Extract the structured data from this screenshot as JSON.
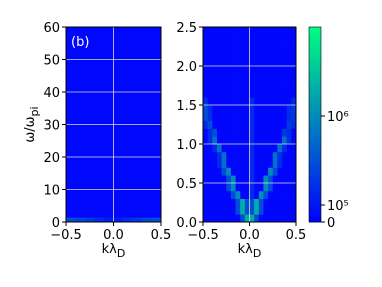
{
  "chart_data": [
    {
      "type": "heatmap",
      "annotation": "(b)",
      "xlabel": "kλ",
      "xlabel_subscript": "D",
      "ylabel": "ω/ω",
      "ylabel_subscript": "pi",
      "xlim": [
        -0.5,
        0.5
      ],
      "ylim": [
        0,
        60
      ],
      "xticks": [
        {
          "value": -0.5,
          "label": "−0.5"
        },
        {
          "value": 0,
          "label": "0.0"
        },
        0.5
      ],
      "yticks": [
        0,
        10,
        20,
        30,
        40,
        50,
        60
      ],
      "grid": true,
      "colormap": "winter",
      "xbins": [
        -0.5,
        -0.4,
        -0.3,
        -0.2,
        -0.1,
        0,
        0.1,
        0.2,
        0.3,
        0.4,
        0.5
      ],
      "ybins": [
        0,
        1.5,
        60
      ],
      "z": [
        [
          300000.0,
          250000.0,
          200000.0,
          150000.0,
          120000.0,
          120000.0,
          150000.0,
          200000.0,
          250000.0,
          300000.0
        ],
        [
          30000.0,
          30000.0,
          30000.0,
          30000.0,
          30000.0,
          30000.0,
          30000.0,
          30000.0,
          30000.0,
          30000.0
        ]
      ]
    },
    {
      "type": "heatmap",
      "xlabel": "kλ",
      "xlabel_subscript": "D",
      "xlim": [
        -0.5,
        0.5
      ],
      "ylim": [
        0,
        2.5
      ],
      "xticks": [
        {
          "value": -0.5,
          "label": "−0.5"
        },
        {
          "value": 0,
          "label": "0.0"
        },
        0.5
      ],
      "yticks": [
        {
          "value": 0,
          "label": "0.0"
        },
        0.5,
        {
          "value": 1,
          "label": "1.0"
        },
        1.5,
        {
          "value": 2,
          "label": "2.0"
        },
        2.5
      ],
      "grid": true,
      "colormap": "winter",
      "colorbar": {
        "zlim": [
          0,
          10000000.0
        ],
        "linthresh": 100000.0,
        "ticks": [
          {
            "value": 0,
            "label": "0"
          },
          {
            "value": 100000.0,
            "label": "10⁵"
          },
          {
            "value": 1000000.0,
            "label": "10⁶"
          }
        ]
      },
      "xbins": [
        -0.5,
        -0.45,
        -0.4,
        -0.35,
        -0.3,
        -0.25,
        -0.2,
        -0.15,
        -0.1,
        -0.05,
        0,
        0.05,
        0.1,
        0.15,
        0.2,
        0.25,
        0.3,
        0.35,
        0.4,
        0.45,
        0.5
      ],
      "ybins": [
        0,
        0.1,
        0.2,
        0.3,
        0.4,
        0.5,
        0.6,
        0.7,
        0.8,
        0.9,
        1,
        1.1,
        1.2,
        1.3,
        1.4,
        1.5,
        1.6,
        1.7,
        1.8,
        1.9,
        2,
        2.1,
        2.2,
        2.3,
        2.4,
        2.5
      ],
      "z": [
        [
          30000.0,
          30000.0,
          30000.0,
          30000.0,
          30000.0,
          30000.0,
          30000.0,
          30000.0,
          300000.0,
          2000000.0,
          2000000.0,
          300000.0,
          30000.0,
          30000.0,
          30000.0,
          30000.0,
          30000.0,
          30000.0,
          30000.0,
          30000.0
        ],
        [
          30000.0,
          30000.0,
          30000.0,
          30000.0,
          30000.0,
          30000.0,
          30000.0,
          300000.0,
          2000000.0,
          300000.0,
          300000.0,
          2000000.0,
          300000.0,
          30000.0,
          30000.0,
          30000.0,
          30000.0,
          30000.0,
          30000.0,
          30000.0
        ],
        [
          30000.0,
          30000.0,
          30000.0,
          30000.0,
          30000.0,
          30000.0,
          30000.0,
          300000.0,
          2000000.0,
          300000.0,
          300000.0,
          2000000.0,
          300000.0,
          30000.0,
          30000.0,
          30000.0,
          30000.0,
          30000.0,
          30000.0,
          30000.0
        ],
        [
          30000.0,
          30000.0,
          30000.0,
          30000.0,
          30000.0,
          30000.0,
          300000.0,
          1000000.0,
          30000.0,
          30000.0,
          150000.0,
          30000.0,
          1000000.0,
          300000.0,
          30000.0,
          30000.0,
          30000.0,
          30000.0,
          30000.0,
          30000.0
        ],
        [
          30000.0,
          30000.0,
          30000.0,
          30000.0,
          30000.0,
          300000.0,
          1000000.0,
          30000.0,
          30000.0,
          30000.0,
          150000.0,
          30000.0,
          30000.0,
          1000000.0,
          300000.0,
          30000.0,
          30000.0,
          30000.0,
          30000.0,
          30000.0
        ],
        [
          30000.0,
          30000.0,
          30000.0,
          30000.0,
          30000.0,
          300000.0,
          1000000.0,
          30000.0,
          30000.0,
          30000.0,
          150000.0,
          30000.0,
          30000.0,
          1000000.0,
          300000.0,
          30000.0,
          30000.0,
          30000.0,
          30000.0,
          30000.0
        ],
        [
          30000.0,
          30000.0,
          30000.0,
          30000.0,
          300000.0,
          1000000.0,
          30000.0,
          30000.0,
          30000.0,
          30000.0,
          150000.0,
          30000.0,
          30000.0,
          30000.0,
          1000000.0,
          300000.0,
          30000.0,
          30000.0,
          30000.0,
          30000.0
        ],
        [
          30000.0,
          30000.0,
          30000.0,
          150000.0,
          600000.0,
          30000.0,
          30000.0,
          30000.0,
          30000.0,
          30000.0,
          150000.0,
          30000.0,
          30000.0,
          30000.0,
          30000.0,
          600000.0,
          150000.0,
          30000.0,
          30000.0,
          30000.0
        ],
        [
          30000.0,
          30000.0,
          30000.0,
          150000.0,
          600000.0,
          30000.0,
          30000.0,
          30000.0,
          30000.0,
          30000.0,
          150000.0,
          30000.0,
          30000.0,
          30000.0,
          30000.0,
          600000.0,
          150000.0,
          30000.0,
          30000.0,
          30000.0
        ],
        [
          30000.0,
          30000.0,
          150000.0,
          600000.0,
          30000.0,
          30000.0,
          30000.0,
          30000.0,
          30000.0,
          30000.0,
          150000.0,
          30000.0,
          30000.0,
          30000.0,
          30000.0,
          30000.0,
          600000.0,
          150000.0,
          30000.0,
          30000.0
        ],
        [
          30000.0,
          150000.0,
          600000.0,
          30000.0,
          30000.0,
          30000.0,
          30000.0,
          30000.0,
          30000.0,
          30000.0,
          150000.0,
          30000.0,
          30000.0,
          30000.0,
          30000.0,
          30000.0,
          30000.0,
          600000.0,
          150000.0,
          30000.0
        ],
        [
          30000.0,
          150000.0,
          300000.0,
          30000.0,
          30000.0,
          30000.0,
          30000.0,
          30000.0,
          30000.0,
          30000.0,
          150000.0,
          30000.0,
          30000.0,
          30000.0,
          30000.0,
          30000.0,
          30000.0,
          200000.0,
          150000.0,
          30000.0
        ],
        [
          150000.0,
          300000.0,
          30000.0,
          30000.0,
          30000.0,
          30000.0,
          30000.0,
          30000.0,
          30000.0,
          30000.0,
          150000.0,
          30000.0,
          30000.0,
          30000.0,
          30000.0,
          30000.0,
          30000.0,
          30000.0,
          200000.0,
          150000.0
        ],
        [
          300000.0,
          150000.0,
          30000.0,
          30000.0,
          30000.0,
          30000.0,
          30000.0,
          30000.0,
          30000.0,
          30000.0,
          150000.0,
          30000.0,
          30000.0,
          30000.0,
          30000.0,
          30000.0,
          30000.0,
          30000.0,
          150000.0,
          200000.0
        ],
        [
          300000.0,
          150000.0,
          30000.0,
          30000.0,
          30000.0,
          30000.0,
          30000.0,
          30000.0,
          30000.0,
          30000.0,
          150000.0,
          30000.0,
          30000.0,
          30000.0,
          30000.0,
          30000.0,
          30000.0,
          30000.0,
          150000.0,
          200000.0
        ],
        [
          150000.0,
          30000.0,
          30000.0,
          30000.0,
          30000.0,
          30000.0,
          30000.0,
          30000.0,
          30000.0,
          30000.0,
          150000.0,
          30000.0,
          30000.0,
          30000.0,
          30000.0,
          30000.0,
          30000.0,
          30000.0,
          30000.0,
          150000.0
        ],
        [
          30000.0,
          30000.0,
          30000.0,
          30000.0,
          30000.0,
          30000.0,
          30000.0,
          30000.0,
          30000.0,
          30000.0,
          30000.0,
          30000.0,
          30000.0,
          30000.0,
          30000.0,
          30000.0,
          30000.0,
          30000.0,
          30000.0,
          30000.0
        ],
        [
          30000.0,
          30000.0,
          30000.0,
          30000.0,
          30000.0,
          30000.0,
          30000.0,
          30000.0,
          30000.0,
          30000.0,
          30000.0,
          30000.0,
          30000.0,
          30000.0,
          30000.0,
          30000.0,
          30000.0,
          30000.0,
          30000.0,
          30000.0
        ],
        [
          30000.0,
          30000.0,
          30000.0,
          30000.0,
          30000.0,
          30000.0,
          30000.0,
          30000.0,
          30000.0,
          30000.0,
          30000.0,
          30000.0,
          30000.0,
          30000.0,
          30000.0,
          30000.0,
          30000.0,
          30000.0,
          30000.0,
          30000.0
        ],
        [
          30000.0,
          30000.0,
          30000.0,
          30000.0,
          30000.0,
          30000.0,
          30000.0,
          30000.0,
          30000.0,
          30000.0,
          30000.0,
          30000.0,
          30000.0,
          30000.0,
          30000.0,
          30000.0,
          30000.0,
          30000.0,
          30000.0,
          30000.0
        ],
        [
          30000.0,
          30000.0,
          30000.0,
          30000.0,
          30000.0,
          30000.0,
          30000.0,
          30000.0,
          30000.0,
          30000.0,
          30000.0,
          30000.0,
          30000.0,
          30000.0,
          30000.0,
          30000.0,
          30000.0,
          30000.0,
          30000.0,
          30000.0
        ],
        [
          30000.0,
          30000.0,
          30000.0,
          30000.0,
          30000.0,
          30000.0,
          30000.0,
          30000.0,
          30000.0,
          30000.0,
          30000.0,
          30000.0,
          30000.0,
          30000.0,
          30000.0,
          30000.0,
          30000.0,
          30000.0,
          30000.0,
          30000.0
        ],
        [
          30000.0,
          30000.0,
          30000.0,
          30000.0,
          30000.0,
          30000.0,
          30000.0,
          30000.0,
          30000.0,
          30000.0,
          30000.0,
          30000.0,
          30000.0,
          30000.0,
          30000.0,
          30000.0,
          30000.0,
          30000.0,
          30000.0,
          30000.0
        ],
        [
          30000.0,
          30000.0,
          30000.0,
          30000.0,
          30000.0,
          30000.0,
          30000.0,
          30000.0,
          30000.0,
          30000.0,
          30000.0,
          30000.0,
          30000.0,
          30000.0,
          30000.0,
          30000.0,
          30000.0,
          30000.0,
          30000.0,
          30000.0
        ],
        [
          30000.0,
          30000.0,
          30000.0,
          30000.0,
          30000.0,
          30000.0,
          30000.0,
          30000.0,
          30000.0,
          30000.0,
          30000.0,
          30000.0,
          30000.0,
          30000.0,
          30000.0,
          30000.0,
          30000.0,
          30000.0,
          30000.0,
          30000.0
        ]
      ]
    }
  ]
}
